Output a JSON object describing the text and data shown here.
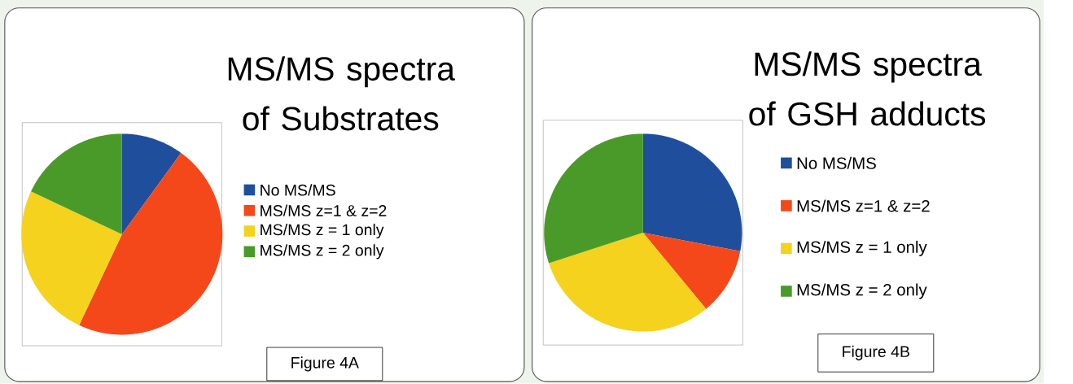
{
  "chart_data": [
    {
      "type": "pie",
      "title": "MS/MS spectra of Substrates",
      "categories": [
        "No MS/MS",
        "MS/MS z=1 & z=2",
        "MS/MS z = 1 only",
        "MS/MS z = 2 only"
      ],
      "values": [
        10,
        47,
        25,
        18
      ],
      "colors": [
        "#1f4e9c",
        "#f5481a",
        "#f5d21e",
        "#4a9a2a"
      ],
      "legend": "right",
      "annotations": [
        "Figure 4A"
      ]
    },
    {
      "type": "pie",
      "title": "MS/MS spectra of GSH adducts",
      "categories": [
        "No MS/MS",
        "MS/MS z=1 & z=2",
        "MS/MS z = 1 only",
        "MS/MS z = 2 only"
      ],
      "values": [
        28,
        11,
        31,
        30
      ],
      "colors": [
        "#1f4e9c",
        "#f5481a",
        "#f5d21e",
        "#4a9a2a"
      ],
      "legend": "right",
      "annotations": [
        "Figure 4B"
      ]
    }
  ]
}
